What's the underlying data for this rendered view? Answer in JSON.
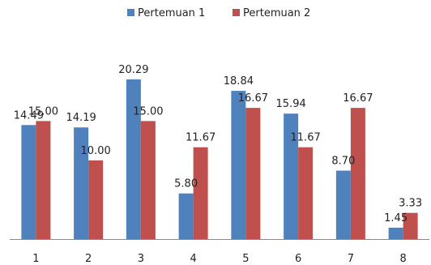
{
  "chart_data": {
    "type": "bar",
    "title": "",
    "xlabel": "",
    "ylabel": "",
    "categories": [
      "1",
      "2",
      "3",
      "4",
      "5",
      "6",
      "7",
      "8"
    ],
    "series": [
      {
        "name": "Pertemuan 1",
        "color": "#4F81BD",
        "values": [
          14.49,
          14.19,
          20.29,
          5.8,
          18.84,
          15.94,
          8.7,
          1.45
        ],
        "labels": [
          "14.49",
          "14.19",
          "20.29",
          "5.80",
          "18.84",
          "15.94",
          "8.70",
          "1.45"
        ]
      },
      {
        "name": "Pertemuan 2",
        "color": "#C0504D",
        "values": [
          15.0,
          10.0,
          15.0,
          11.67,
          16.67,
          11.67,
          16.67,
          3.33
        ],
        "labels": [
          "15.00",
          "10.00",
          "15.00",
          "11.67",
          "16.67",
          "11.67",
          "16.67",
          "3.33"
        ]
      }
    ],
    "ylim": [
      0,
      20.29
    ],
    "grid": false,
    "legend_position": "top"
  }
}
